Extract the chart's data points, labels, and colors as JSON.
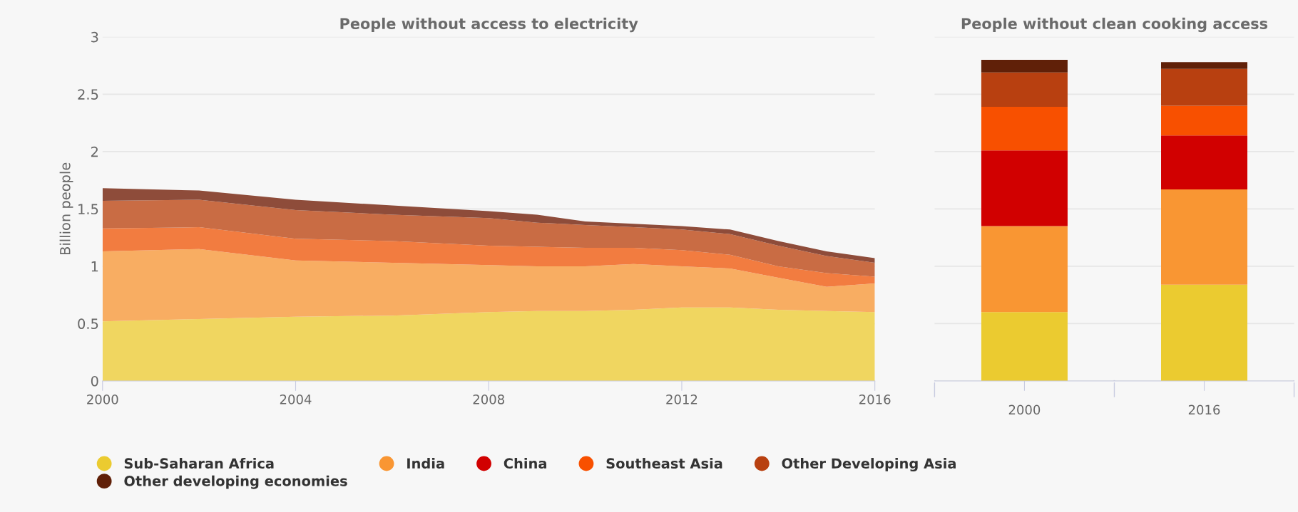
{
  "chart_data": [
    {
      "type": "area",
      "stacked": true,
      "title": "People without access to electricity",
      "ylabel": "Billion people",
      "x": [
        2000,
        2002,
        2004,
        2006,
        2008,
        2009,
        2010,
        2011,
        2012,
        2013,
        2014,
        2015,
        2016
      ],
      "xlim": [
        2000,
        2016
      ],
      "xticks": [
        2000,
        2004,
        2008,
        2012,
        2016
      ],
      "ylim": [
        0,
        3
      ],
      "yticks": [
        0,
        0.5,
        1,
        1.5,
        2,
        2.5,
        3
      ],
      "grid": "y",
      "series": [
        {
          "color": "#f0d660",
          "values": [
            0.52,
            0.54,
            0.56,
            0.57,
            0.6,
            0.61,
            0.61,
            0.62,
            0.64,
            0.64,
            0.62,
            0.61,
            0.6
          ]
        },
        {
          "color": "#f8ad62",
          "values": [
            0.61,
            0.61,
            0.49,
            0.46,
            0.41,
            0.39,
            0.39,
            0.4,
            0.36,
            0.34,
            0.28,
            0.21,
            0.25
          ]
        },
        {
          "color": "#f27c40",
          "values": [
            0.2,
            0.19,
            0.19,
            0.19,
            0.17,
            0.17,
            0.16,
            0.14,
            0.14,
            0.12,
            0.1,
            0.12,
            0.06
          ]
        },
        {
          "color": "#c96c44",
          "values": [
            0.24,
            0.24,
            0.25,
            0.23,
            0.24,
            0.21,
            0.2,
            0.18,
            0.18,
            0.18,
            0.18,
            0.15,
            0.12
          ]
        },
        {
          "color": "#8e4c3a",
          "values": [
            0.11,
            0.08,
            0.09,
            0.08,
            0.06,
            0.07,
            0.03,
            0.03,
            0.03,
            0.04,
            0.04,
            0.04,
            0.04
          ]
        }
      ]
    },
    {
      "type": "bar",
      "stacked": true,
      "title": "People without clean cooking access",
      "categories": [
        "2000",
        "2016"
      ],
      "ylim": [
        0,
        3
      ],
      "yticks": [
        0,
        0.5,
        1,
        1.5,
        2,
        2.5,
        3
      ],
      "grid": "y",
      "tick_labels": "x",
      "legend": "bottom",
      "series": [
        {
          "name": "Sub-Saharan Africa",
          "color": "#ebcb30",
          "values": [
            0.6,
            0.84
          ]
        },
        {
          "name": "India",
          "color": "#f99633",
          "values": [
            0.75,
            0.83
          ]
        },
        {
          "name": "China",
          "color": "#d10000",
          "values": [
            0.66,
            0.47
          ]
        },
        {
          "name": "Southeast Asia",
          "color": "#f85000",
          "values": [
            0.38,
            0.26
          ]
        },
        {
          "name": "Other Developing Asia",
          "color": "#b84010",
          "values": [
            0.3,
            0.32
          ]
        },
        {
          "name": "Other developing economies",
          "color": "#602008",
          "values": [
            0.11,
            0.06
          ]
        }
      ]
    }
  ]
}
